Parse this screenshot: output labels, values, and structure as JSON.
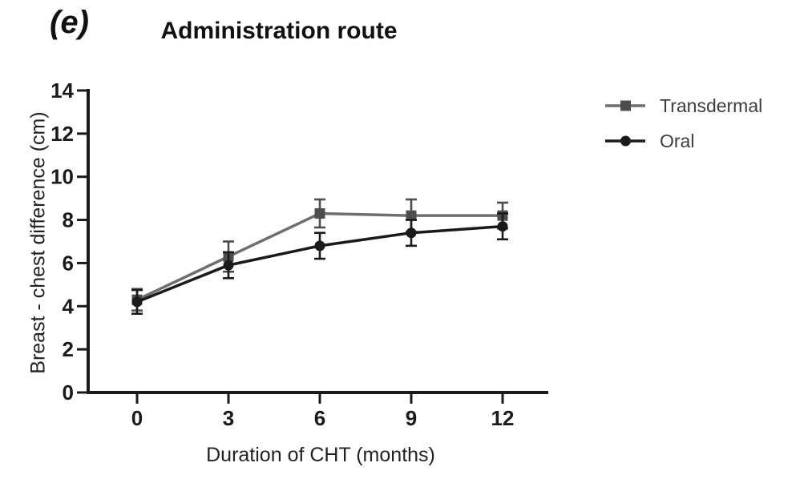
{
  "figure": {
    "panel_label": "(e)",
    "title": "Administration route"
  },
  "legend": {
    "items": [
      {
        "label": "Transdermal",
        "marker": "square",
        "line_color": "#6e6e6e",
        "marker_color": "#4d4d4d"
      },
      {
        "label": "Oral",
        "marker": "circle",
        "line_color": "#1a1a1a",
        "marker_color": "#1a1a1a"
      }
    ]
  },
  "chart_data": {
    "type": "line",
    "title": "Administration route",
    "xlabel": "Duration of CHT (months)",
    "ylabel": "Breast - chest difference (cm)",
    "x": [
      0,
      3,
      6,
      9,
      12
    ],
    "xticks": [
      0,
      3,
      6,
      9,
      12
    ],
    "yticks": [
      0,
      2,
      4,
      6,
      8,
      10,
      12,
      14
    ],
    "ylim": [
      0,
      14
    ],
    "xlim_months": [
      -1.6,
      13.5
    ],
    "grid": false,
    "error_bars": true,
    "legend_position": "right",
    "axis_color": "#1a1a1a",
    "series": [
      {
        "name": "Transdermal",
        "marker": "square",
        "line_color": "#6e6e6e",
        "marker_color": "#4d4d4d",
        "values": [
          4.3,
          6.3,
          8.3,
          8.2,
          8.2
        ],
        "errors": [
          0.5,
          0.7,
          0.65,
          0.75,
          0.6
        ]
      },
      {
        "name": "Oral",
        "marker": "circle",
        "line_color": "#1a1a1a",
        "marker_color": "#1a1a1a",
        "values": [
          4.2,
          5.9,
          6.8,
          7.4,
          7.7
        ],
        "errors": [
          0.55,
          0.6,
          0.6,
          0.6,
          0.6
        ]
      }
    ]
  }
}
